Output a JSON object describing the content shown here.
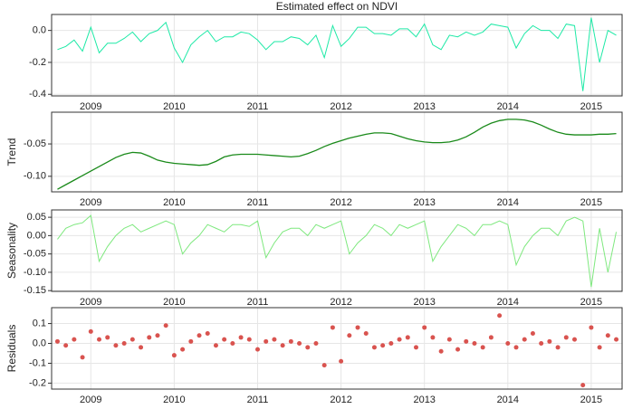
{
  "chart_data": [
    {
      "type": "line",
      "title": "Estimated effect on NDVI",
      "color": "#1de9a6",
      "x": [
        2008.6,
        2008.7,
        2008.8,
        2008.9,
        2009.0,
        2009.1,
        2009.2,
        2009.3,
        2009.4,
        2009.5,
        2009.6,
        2009.7,
        2009.8,
        2009.9,
        2010.0,
        2010.1,
        2010.2,
        2010.3,
        2010.4,
        2010.5,
        2010.6,
        2010.7,
        2010.8,
        2010.9,
        2011.0,
        2011.1,
        2011.2,
        2011.3,
        2011.4,
        2011.5,
        2011.6,
        2011.7,
        2011.8,
        2011.9,
        2012.0,
        2012.1,
        2012.2,
        2012.3,
        2012.4,
        2012.5,
        2012.6,
        2012.7,
        2012.8,
        2012.9,
        2013.0,
        2013.1,
        2013.2,
        2013.3,
        2013.4,
        2013.5,
        2013.6,
        2013.7,
        2013.8,
        2013.9,
        2014.0,
        2014.1,
        2014.2,
        2014.3,
        2014.4,
        2014.5,
        2014.6,
        2014.7,
        2014.8,
        2014.9,
        2015.0,
        2015.1,
        2015.2,
        2015.3
      ],
      "values": [
        -0.12,
        -0.1,
        -0.06,
        -0.13,
        0.02,
        -0.14,
        -0.08,
        -0.08,
        -0.05,
        -0.01,
        -0.07,
        -0.02,
        0.0,
        0.05,
        -0.11,
        -0.2,
        -0.09,
        -0.04,
        0.0,
        -0.07,
        -0.04,
        -0.04,
        -0.01,
        -0.02,
        -0.06,
        -0.12,
        -0.07,
        -0.07,
        -0.04,
        -0.05,
        -0.09,
        -0.03,
        -0.17,
        0.03,
        -0.1,
        -0.05,
        0.02,
        0.02,
        -0.02,
        -0.02,
        -0.03,
        0.01,
        0.01,
        -0.04,
        0.04,
        -0.09,
        -0.12,
        -0.03,
        -0.04,
        -0.01,
        -0.03,
        -0.01,
        0.04,
        0.03,
        0.02,
        -0.11,
        -0.02,
        0.03,
        0.0,
        0.0,
        -0.05,
        0.04,
        0.03,
        -0.38,
        0.08,
        -0.2,
        0.0,
        -0.03
      ],
      "xlim": [
        2008.53,
        2015.37
      ],
      "ylim": [
        -0.41,
        0.1
      ],
      "xticks": [
        2009,
        2010,
        2011,
        2012,
        2013,
        2014,
        2015
      ],
      "yticks": [
        {
          "value": 0.0,
          "label": "0.0"
        },
        {
          "value": -0.2,
          "label": "-0.2"
        },
        {
          "value": -0.4,
          "label": "-0.4"
        }
      ],
      "grid": true
    },
    {
      "type": "line",
      "ylabel": "Trend",
      "color": "#1a8a1a",
      "x": [
        2008.6,
        2008.7,
        2008.8,
        2008.9,
        2009.0,
        2009.1,
        2009.2,
        2009.3,
        2009.4,
        2009.5,
        2009.6,
        2009.7,
        2009.8,
        2009.9,
        2010.0,
        2010.1,
        2010.2,
        2010.3,
        2010.4,
        2010.5,
        2010.6,
        2010.7,
        2010.8,
        2010.9,
        2011.0,
        2011.1,
        2011.2,
        2011.3,
        2011.4,
        2011.5,
        2011.6,
        2011.7,
        2011.8,
        2011.9,
        2012.0,
        2012.1,
        2012.2,
        2012.3,
        2012.4,
        2012.5,
        2012.6,
        2012.7,
        2012.8,
        2012.9,
        2013.0,
        2013.1,
        2013.2,
        2013.3,
        2013.4,
        2013.5,
        2013.6,
        2013.7,
        2013.8,
        2013.9,
        2014.0,
        2014.1,
        2014.2,
        2014.3,
        2014.4,
        2014.5,
        2014.6,
        2014.7,
        2014.8,
        2014.9,
        2015.0,
        2015.1,
        2015.2,
        2015.3
      ],
      "values": [
        -0.12,
        -0.113,
        -0.106,
        -0.099,
        -0.092,
        -0.085,
        -0.078,
        -0.071,
        -0.066,
        -0.063,
        -0.064,
        -0.069,
        -0.075,
        -0.078,
        -0.08,
        -0.081,
        -0.082,
        -0.083,
        -0.082,
        -0.077,
        -0.07,
        -0.067,
        -0.066,
        -0.066,
        -0.066,
        -0.067,
        -0.068,
        -0.069,
        -0.07,
        -0.069,
        -0.065,
        -0.06,
        -0.054,
        -0.049,
        -0.045,
        -0.041,
        -0.038,
        -0.035,
        -0.033,
        -0.033,
        -0.034,
        -0.038,
        -0.042,
        -0.045,
        -0.047,
        -0.048,
        -0.048,
        -0.047,
        -0.044,
        -0.039,
        -0.032,
        -0.024,
        -0.018,
        -0.014,
        -0.012,
        -0.012,
        -0.013,
        -0.016,
        -0.021,
        -0.027,
        -0.032,
        -0.035,
        -0.036,
        -0.036,
        -0.036,
        -0.035,
        -0.035,
        -0.034
      ],
      "xlim": [
        2008.53,
        2015.37
      ],
      "ylim": [
        -0.124,
        -0.001
      ],
      "xticks": [
        2009,
        2010,
        2011,
        2012,
        2013,
        2014,
        2015
      ],
      "yticks": [
        -0.05,
        {
          "value": -0.1,
          "label": "-0.10"
        }
      ],
      "grid": true
    },
    {
      "type": "line",
      "ylabel": "Seasonality",
      "color": "#7ee87e",
      "x": [
        2008.6,
        2008.7,
        2008.8,
        2008.9,
        2009.0,
        2009.1,
        2009.2,
        2009.3,
        2009.4,
        2009.5,
        2009.6,
        2009.7,
        2009.8,
        2009.9,
        2010.0,
        2010.1,
        2010.2,
        2010.3,
        2010.4,
        2010.5,
        2010.6,
        2010.7,
        2010.8,
        2010.9,
        2011.0,
        2011.1,
        2011.2,
        2011.3,
        2011.4,
        2011.5,
        2011.6,
        2011.7,
        2011.8,
        2011.9,
        2012.0,
        2012.1,
        2012.2,
        2012.3,
        2012.4,
        2012.5,
        2012.6,
        2012.7,
        2012.8,
        2012.9,
        2013.0,
        2013.1,
        2013.2,
        2013.3,
        2013.4,
        2013.5,
        2013.6,
        2013.7,
        2013.8,
        2013.9,
        2014.0,
        2014.1,
        2014.2,
        2014.3,
        2014.4,
        2014.5,
        2014.6,
        2014.7,
        2014.8,
        2014.9,
        2015.0,
        2015.1,
        2015.2,
        2015.3
      ],
      "values": [
        -0.01,
        0.02,
        0.03,
        0.035,
        0.055,
        -0.07,
        -0.03,
        0.0,
        0.02,
        0.03,
        0.01,
        0.02,
        0.03,
        0.04,
        0.03,
        -0.05,
        -0.02,
        0.0,
        0.03,
        0.02,
        0.01,
        0.03,
        0.03,
        0.025,
        0.04,
        -0.06,
        -0.02,
        0.01,
        0.02,
        0.02,
        0.0,
        0.03,
        0.02,
        0.03,
        0.04,
        -0.05,
        -0.02,
        0.0,
        0.03,
        0.02,
        0.0,
        0.03,
        0.02,
        0.03,
        0.04,
        -0.07,
        -0.03,
        0.0,
        0.03,
        0.02,
        0.0,
        0.03,
        0.03,
        0.04,
        0.03,
        -0.08,
        -0.03,
        0.0,
        0.02,
        0.02,
        0.0,
        0.04,
        0.05,
        0.04,
        -0.14,
        0.02,
        -0.1,
        0.01
      ],
      "xlim": [
        2008.53,
        2015.37
      ],
      "ylim": [
        -0.152,
        0.07
      ],
      "xticks": [
        2009,
        2010,
        2011,
        2012,
        2013,
        2014,
        2015
      ],
      "yticks": [
        0.05,
        {
          "value": 0.0,
          "label": "0.00"
        },
        -0.05,
        {
          "value": -0.1,
          "label": "-0.10"
        },
        -0.15
      ],
      "grid": true
    },
    {
      "type": "scatter",
      "ylabel": "Residuals",
      "color": "#d9534f",
      "x": [
        2008.6,
        2008.7,
        2008.8,
        2008.9,
        2009.0,
        2009.1,
        2009.2,
        2009.3,
        2009.4,
        2009.5,
        2009.6,
        2009.7,
        2009.8,
        2009.9,
        2010.0,
        2010.1,
        2010.2,
        2010.3,
        2010.4,
        2010.5,
        2010.6,
        2010.7,
        2010.8,
        2010.9,
        2011.0,
        2011.1,
        2011.2,
        2011.3,
        2011.4,
        2011.5,
        2011.6,
        2011.7,
        2011.8,
        2011.9,
        2012.0,
        2012.1,
        2012.2,
        2012.3,
        2012.4,
        2012.5,
        2012.6,
        2012.7,
        2012.8,
        2012.9,
        2013.0,
        2013.1,
        2013.2,
        2013.3,
        2013.4,
        2013.5,
        2013.6,
        2013.7,
        2013.8,
        2013.9,
        2014.0,
        2014.1,
        2014.2,
        2014.3,
        2014.4,
        2014.5,
        2014.6,
        2014.7,
        2014.8,
        2014.9,
        2015.0,
        2015.1,
        2015.2,
        2015.3
      ],
      "values": [
        0.01,
        -0.01,
        0.02,
        -0.07,
        0.06,
        0.02,
        0.03,
        -0.01,
        0.0,
        0.02,
        -0.02,
        0.03,
        0.04,
        0.09,
        -0.06,
        -0.03,
        0.01,
        0.04,
        0.05,
        -0.01,
        0.02,
        0.0,
        0.03,
        0.02,
        -0.03,
        0.01,
        0.02,
        -0.01,
        0.01,
        0.0,
        -0.02,
        0.0,
        -0.11,
        0.08,
        -0.09,
        0.04,
        0.08,
        0.05,
        -0.02,
        -0.01,
        0.0,
        0.02,
        0.03,
        -0.02,
        0.08,
        0.03,
        -0.04,
        0.02,
        -0.03,
        0.01,
        0.0,
        -0.02,
        0.03,
        0.14,
        0.0,
        -0.02,
        0.02,
        0.05,
        0.0,
        0.01,
        -0.02,
        0.03,
        0.02,
        -0.21,
        0.08,
        -0.02,
        0.04,
        0.02
      ],
      "xlim": [
        2008.53,
        2015.37
      ],
      "ylim": [
        -0.23,
        0.18
      ],
      "xticks": [
        2009,
        2010,
        2011,
        2012,
        2013,
        2014,
        2015
      ],
      "yticks": [
        0.1,
        {
          "value": 0.0,
          "label": "0.0"
        },
        -0.1,
        -0.2
      ],
      "grid": true
    }
  ]
}
